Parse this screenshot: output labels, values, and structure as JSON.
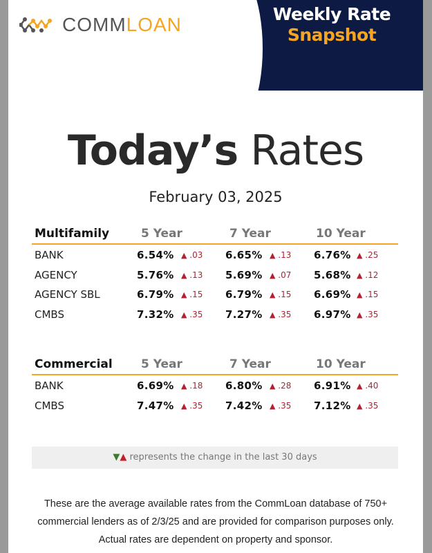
{
  "header": {
    "logo_text_a": "COMM",
    "logo_text_b": "LOAN",
    "banner_line1": "Weekly Rate",
    "banner_line2": "Snapshot"
  },
  "title_bold": "Today’s",
  "title_light": "Rates",
  "date": "February 03, 2025",
  "columns": [
    "5 Year",
    "7 Year",
    "10 Year"
  ],
  "multifamily": {
    "label": "Multifamily",
    "rows": [
      {
        "name": "BANK",
        "values": [
          {
            "rate": "6.54%",
            "change": ".03"
          },
          {
            "rate": "6.65%",
            "change": ".13"
          },
          {
            "rate": "6.76%",
            "change": ".25"
          }
        ]
      },
      {
        "name": "AGENCY",
        "values": [
          {
            "rate": "5.76%",
            "change": ".13"
          },
          {
            "rate": "5.69%",
            "change": ".07"
          },
          {
            "rate": "5.68%",
            "change": ".12"
          }
        ]
      },
      {
        "name": "AGENCY SBL",
        "values": [
          {
            "rate": "6.79%",
            "change": ".15"
          },
          {
            "rate": "6.79%",
            "change": ".15"
          },
          {
            "rate": "6.69%",
            "change": ".15"
          }
        ]
      },
      {
        "name": "CMBS",
        "values": [
          {
            "rate": "7.32%",
            "change": ".35"
          },
          {
            "rate": "7.27%",
            "change": ".35"
          },
          {
            "rate": "6.97%",
            "change": ".35"
          }
        ]
      }
    ]
  },
  "commercial": {
    "label": "Commercial",
    "rows": [
      {
        "name": "BANK",
        "values": [
          {
            "rate": "6.69%",
            "change": ".18"
          },
          {
            "rate": "6.80%",
            "change": ".28"
          },
          {
            "rate": "6.91%",
            "change": ".40"
          }
        ]
      },
      {
        "name": "CMBS",
        "values": [
          {
            "rate": "7.47%",
            "change": ".35"
          },
          {
            "rate": "7.42%",
            "change": ".35"
          },
          {
            "rate": "7.12%",
            "change": ".35"
          }
        ]
      }
    ]
  },
  "legend": {
    "down_symbol": "▼",
    "up_symbol": "▲",
    "text": "represents the change in the last 30 days"
  },
  "footnote": "These are the average available rates from the CommLoan database of 750+ commercial lenders as of 2/3/25 and are provided for comparison purposes only. Actual rates are dependent on property and sponsor.",
  "colors": {
    "navy": "#0d1a44",
    "orange": "#f5a524",
    "up_red": "#b22234",
    "down_green": "#3b7d2a"
  }
}
